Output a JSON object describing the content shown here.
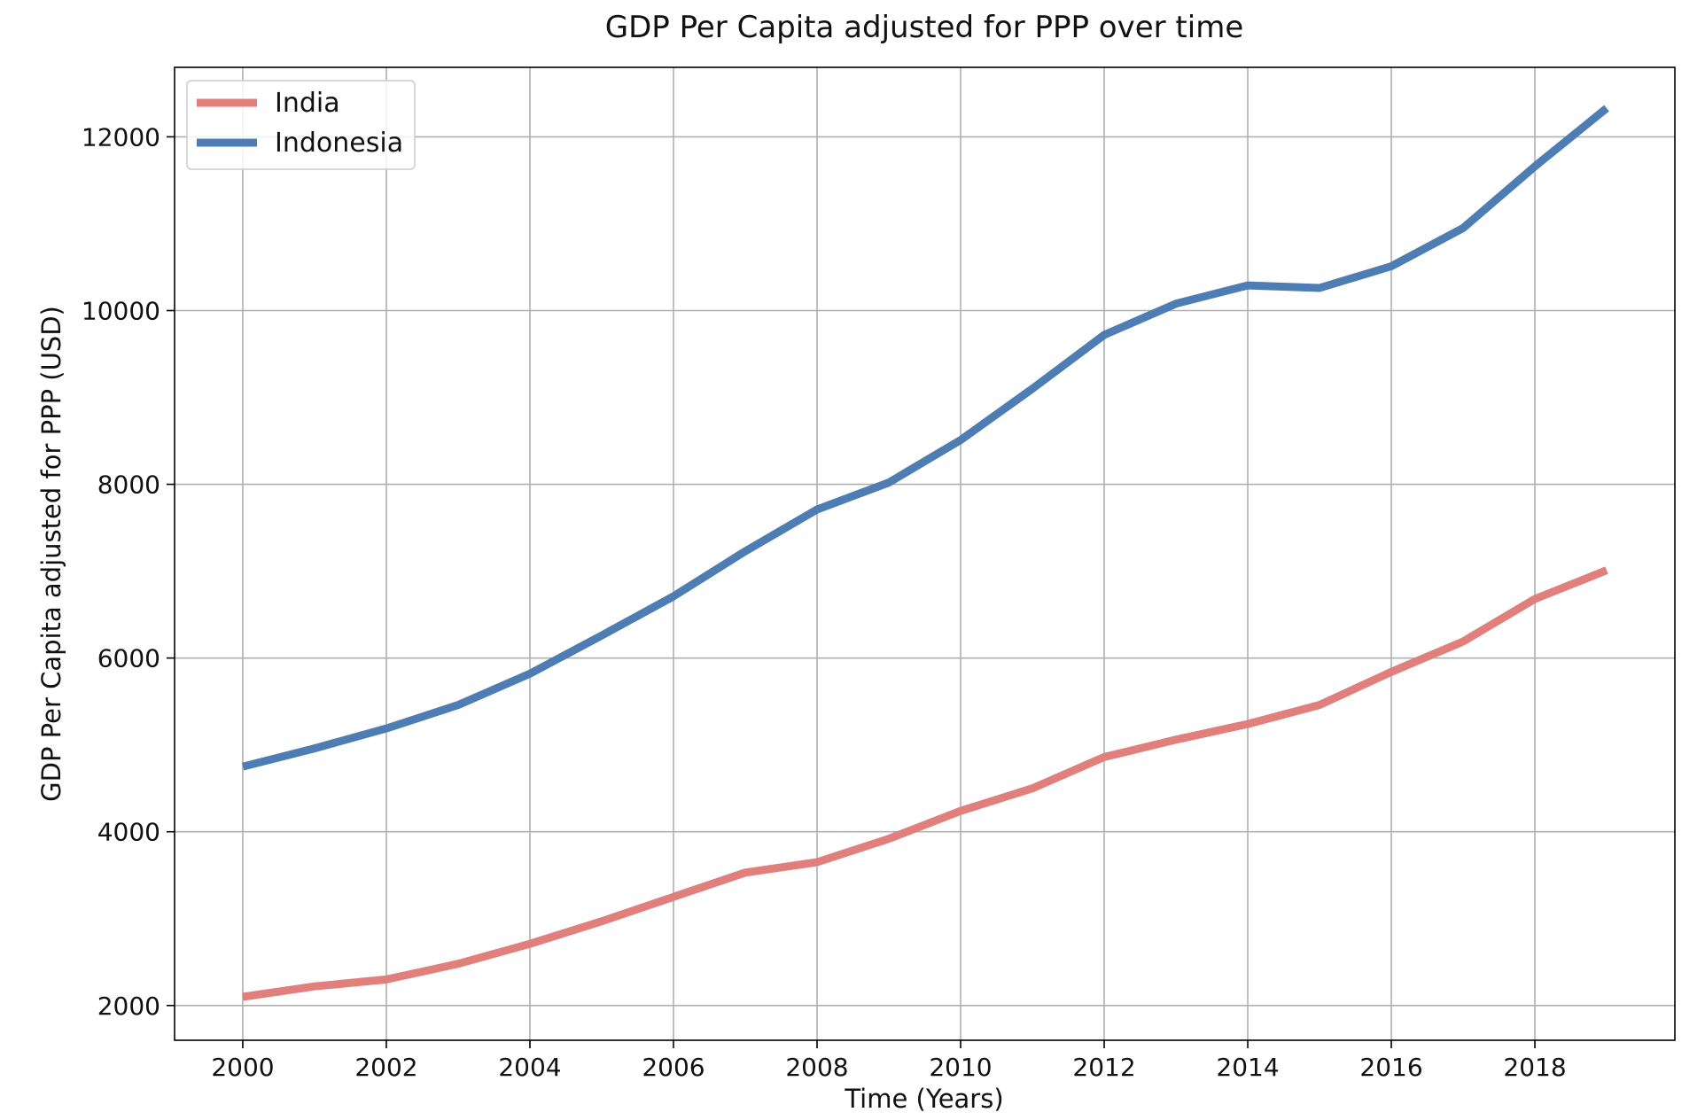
{
  "chart_data": {
    "type": "line",
    "title": "GDP Per Capita adjusted for PPP over time",
    "xlabel": "Time (Years)",
    "ylabel": "GDP Per Capita adjusted for PPP (USD)",
    "xlim": [
      1999.05,
      2019.95
    ],
    "ylim": [
      1600,
      12800
    ],
    "x_ticks": [
      2000,
      2002,
      2004,
      2006,
      2008,
      2010,
      2012,
      2014,
      2016,
      2018
    ],
    "y_ticks": [
      2000,
      4000,
      6000,
      8000,
      10000,
      12000
    ],
    "grid": true,
    "legend_position": "top-left",
    "x": [
      2000,
      2001,
      2002,
      2003,
      2004,
      2005,
      2006,
      2007,
      2008,
      2009,
      2010,
      2011,
      2012,
      2013,
      2014,
      2015,
      2016,
      2017,
      2018,
      2019
    ],
    "series": [
      {
        "name": "India",
        "color": "#e07f7c",
        "values": [
          2100,
          2220,
          2300,
          2480,
          2710,
          2970,
          3250,
          3530,
          3650,
          3920,
          4240,
          4500,
          4860,
          5060,
          5240,
          5460,
          5840,
          6190,
          6680,
          7010
        ]
      },
      {
        "name": "Indonesia",
        "color": "#4e7db4",
        "values": [
          4750,
          4960,
          5190,
          5460,
          5820,
          6260,
          6710,
          7230,
          7710,
          8020,
          8510,
          9100,
          9720,
          10080,
          10290,
          10260,
          10510,
          10950,
          11660,
          12330
        ]
      }
    ]
  }
}
